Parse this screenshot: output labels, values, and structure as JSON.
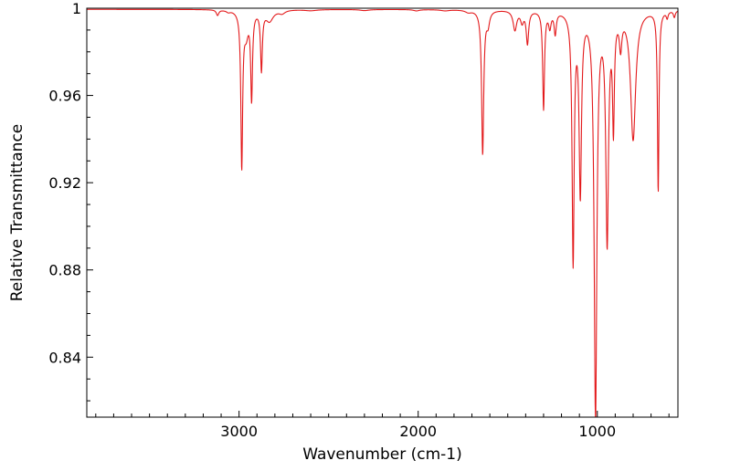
{
  "chart_data": {
    "type": "line",
    "title": "",
    "xlabel": "Wavenumber (cm-1)",
    "ylabel": "Relative Transmittance",
    "xlim": [
      3850,
      550
    ],
    "ylim": [
      0.8125,
      1.0
    ],
    "x_reversed": true,
    "grid": false,
    "legend": "none",
    "x_ticks": [
      {
        "value": 3000,
        "label": "3000"
      },
      {
        "value": 2000,
        "label": "2000"
      },
      {
        "value": 1000,
        "label": "1000"
      }
    ],
    "y_ticks": [
      {
        "value": 1.0,
        "label": "1"
      },
      {
        "value": 0.96,
        "label": "0.96"
      },
      {
        "value": 0.92,
        "label": "0.92"
      },
      {
        "value": 0.88,
        "label": "0.88"
      },
      {
        "value": 0.84,
        "label": "0.84"
      }
    ],
    "series": [
      {
        "color": "#e31a1c",
        "baseline": 0.9995,
        "peaks": [
          {
            "x": 3120,
            "depth": 0.0025,
            "width": 8
          },
          {
            "x": 3060,
            "depth": 0.0008,
            "width": 12
          },
          {
            "x": 2985,
            "depth": 0.071,
            "width": 6
          },
          {
            "x": 2960,
            "depth": 0.01,
            "width": 14
          },
          {
            "x": 2930,
            "depth": 0.04,
            "width": 6
          },
          {
            "x": 2875,
            "depth": 0.027,
            "width": 6
          },
          {
            "x": 2830,
            "depth": 0.005,
            "width": 25
          },
          {
            "x": 2760,
            "depth": 0.0015,
            "width": 20
          },
          {
            "x": 2600,
            "depth": 0.0005,
            "width": 40
          },
          {
            "x": 2300,
            "depth": 0.0005,
            "width": 30
          },
          {
            "x": 2010,
            "depth": 0.0006,
            "width": 20
          },
          {
            "x": 1850,
            "depth": 0.0005,
            "width": 30
          },
          {
            "x": 1720,
            "depth": 0.001,
            "width": 20
          },
          {
            "x": 1640,
            "depth": 0.066,
            "width": 7
          },
          {
            "x": 1610,
            "depth": 0.006,
            "width": 10
          },
          {
            "x": 1460,
            "depth": 0.009,
            "width": 12
          },
          {
            "x": 1420,
            "depth": 0.005,
            "width": 10
          },
          {
            "x": 1390,
            "depth": 0.015,
            "width": 8
          },
          {
            "x": 1300,
            "depth": 0.045,
            "width": 6
          },
          {
            "x": 1265,
            "depth": 0.007,
            "width": 8
          },
          {
            "x": 1235,
            "depth": 0.01,
            "width": 7
          },
          {
            "x": 1135,
            "depth": 0.114,
            "width": 7
          },
          {
            "x": 1095,
            "depth": 0.082,
            "width": 8
          },
          {
            "x": 1010,
            "depth": 0.186,
            "width": 9
          },
          {
            "x": 945,
            "depth": 0.104,
            "width": 9
          },
          {
            "x": 910,
            "depth": 0.05,
            "width": 6
          },
          {
            "x": 870,
            "depth": 0.014,
            "width": 8
          },
          {
            "x": 800,
            "depth": 0.059,
            "width": 17
          },
          {
            "x": 660,
            "depth": 0.083,
            "width": 5
          },
          {
            "x": 610,
            "depth": 0.003,
            "width": 6
          },
          {
            "x": 570,
            "depth": 0.003,
            "width": 6
          }
        ]
      }
    ]
  }
}
